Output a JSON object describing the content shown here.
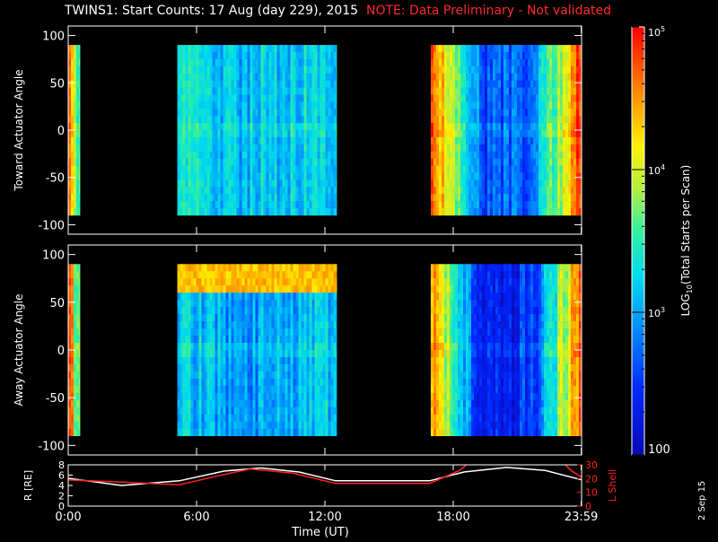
{
  "title": {
    "main": "TWINS1: Start Counts: 17 Aug (day 229), 2015",
    "note": "NOTE: Data Preliminary - Not validated"
  },
  "date_stamp": "2 Sep 15",
  "colors": {
    "background": "#000000",
    "axis": "#ffffff",
    "note": "#ff2a2a",
    "r_line": "#ffffff",
    "l_line": "#ff2020"
  },
  "chart_data": [
    {
      "type": "heatmap",
      "ylabel": "Toward Actuator Angle",
      "xlabel": "",
      "xlim": [
        0,
        24
      ],
      "ylim": [
        -110,
        110
      ],
      "yticks": [
        100,
        50,
        0,
        -50,
        -100
      ],
      "angle_range": [
        -90,
        90
      ],
      "log_color_scale": true,
      "segments": [
        {
          "start": 0.0,
          "end": 0.55,
          "levels": [
            0.85,
            0.75,
            0.45,
            0.55
          ]
        },
        {
          "start": 5.1,
          "end": 12.55,
          "levels": [
            0.42,
            0.38,
            0.4,
            0.42
          ]
        },
        {
          "start": 16.95,
          "end": 24.0,
          "levels": [
            0.9,
            0.2,
            0.25,
            0.95
          ]
        }
      ]
    },
    {
      "type": "heatmap",
      "ylabel": "Away Actuator Angle",
      "xlabel": "",
      "xlim": [
        0,
        24
      ],
      "ylim": [
        -110,
        110
      ],
      "yticks": [
        100,
        50,
        0,
        -50,
        -100
      ],
      "angle_range": [
        -90,
        90
      ],
      "log_color_scale": true,
      "segments": [
        {
          "start": 0.0,
          "end": 0.55,
          "levels": [
            0.85,
            0.75,
            0.45,
            0.55
          ]
        },
        {
          "start": 5.1,
          "end": 12.55,
          "levels": [
            0.4,
            0.32,
            0.34,
            0.38
          ],
          "band": {
            "angle": 75,
            "level": 0.78
          }
        },
        {
          "start": 16.95,
          "end": 24.0,
          "levels": [
            0.85,
            0.12,
            0.15,
            0.92
          ]
        }
      ]
    },
    {
      "type": "line",
      "ylabel": "R [RE]",
      "ylabel_right": "L Shell",
      "xlabel": "Time (UT)",
      "xlim": [
        0,
        24
      ],
      "ylim": [
        0,
        8
      ],
      "yticks": [
        0,
        2,
        4,
        6,
        8
      ],
      "ylim_right": [
        0,
        30
      ],
      "yticks_right": [
        0,
        10,
        20,
        30
      ],
      "xticks": [
        0,
        6,
        12,
        18,
        23.983
      ],
      "xtick_labels": [
        "0:00",
        "6:00",
        "12:00",
        "18:00",
        "23:59"
      ],
      "series": [
        {
          "axis": "left",
          "x": [
            0,
            2.5,
            5.2,
            7.3,
            9.0,
            10.8,
            12.5,
            14.5,
            16.9,
            18.5,
            20.5,
            22.3,
            24.0
          ],
          "values": [
            5.4,
            4.0,
            4.9,
            6.8,
            7.4,
            6.6,
            4.9,
            4.9,
            4.9,
            6.6,
            7.5,
            6.9,
            5.1
          ]
        },
        {
          "axis": "right",
          "x": [
            0,
            2.5,
            5.2,
            7.0,
            8.5,
            10.5,
            12.5,
            14.5,
            16.9,
            18.3,
            19.0,
            21.0,
            22.9,
            23.5,
            24.0
          ],
          "values": [
            19,
            17.5,
            15.5,
            22,
            27,
            24,
            16.5,
            16.5,
            16.5,
            26,
            35,
            35,
            35,
            26,
            21
          ]
        }
      ]
    }
  ],
  "colorbar": {
    "label_prefix": "LOG",
    "label_sub": "10",
    "label_suffix": "(Total Starts per Scan)",
    "tick_labels": [
      "10",
      "10",
      "10",
      "100"
    ],
    "tick_exponents": [
      "5",
      "4",
      "3",
      ""
    ],
    "range": [
      100,
      100000
    ]
  }
}
